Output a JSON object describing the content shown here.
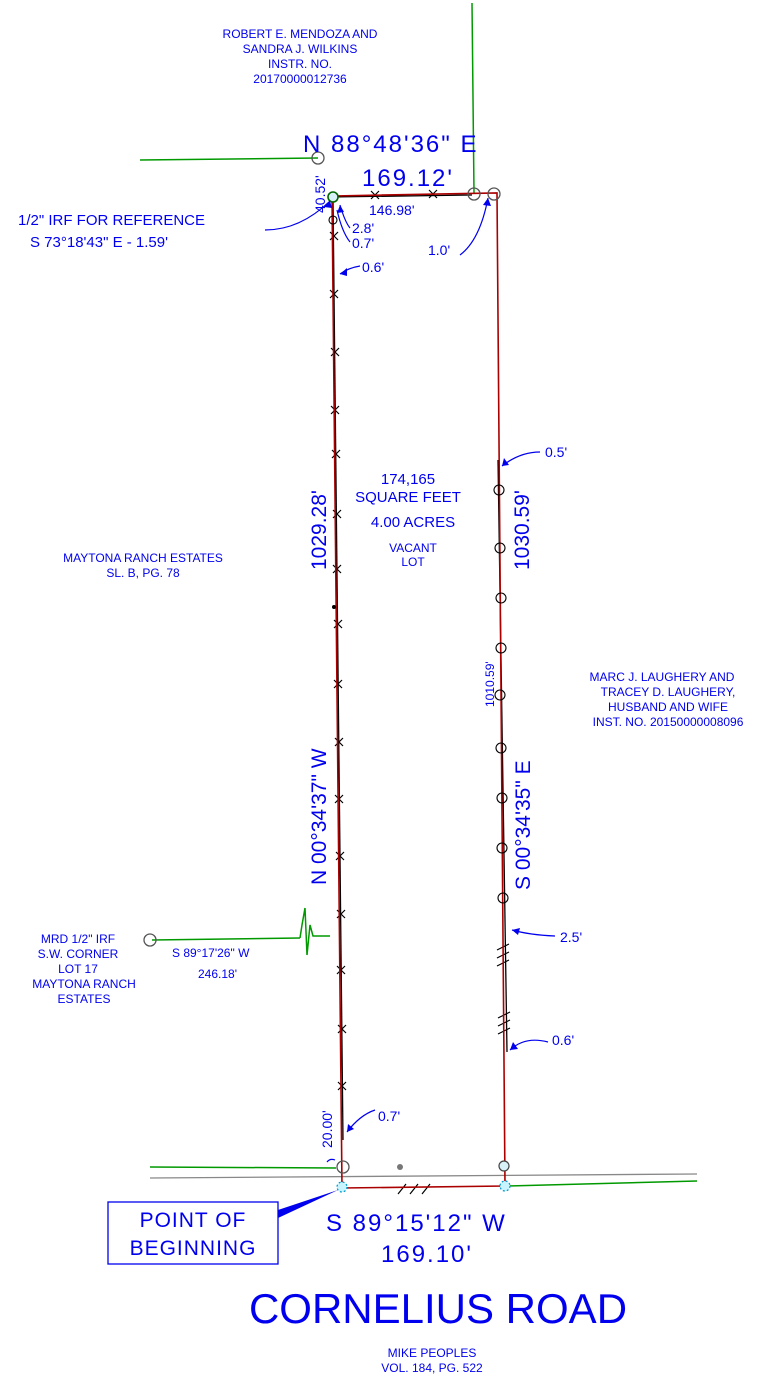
{
  "owners": {
    "north": [
      "ROBERT E. MENDOZA AND",
      "SANDRA J. WILKINS",
      "INSTR. NO.",
      "20170000012736"
    ],
    "west": [
      "MAYTONA RANCH ESTATES",
      "SL. B, PG. 78"
    ],
    "east": [
      "MARC J. LAUGHERY AND",
      "TRACEY D. LAUGHERY,",
      "HUSBAND AND WIFE",
      "INST. NO. 20150000008096"
    ],
    "south": [
      "MIKE PEOPLES",
      "VOL. 184, PG. 522"
    ]
  },
  "bearings": {
    "north_bearing": "N 88°48'36\" E",
    "north_distance": "169.12'",
    "north_fence": "146.98'",
    "west_bearing": "N 00°34'37\" W",
    "west_distance": "1029.28'",
    "east_bearing": "S 00°34'35\" E",
    "east_distance": "1030.59'",
    "east_fence": "1010.59'",
    "south_bearing": "S 89°15'12\" W",
    "south_distance": "169.10'",
    "tie_bearing": "S 89°17'26\" W",
    "tie_distance": "246.18'"
  },
  "offsets": {
    "nw_vertical": "40.52'",
    "a": "2.8'",
    "b": "0.7'",
    "c": "0.6'",
    "ne": "1.0'",
    "east_upper": "0.5'",
    "east_mid": "2.5'",
    "east_lower": "0.6'",
    "sw": "0.7'",
    "sw_vertical": "20.00'"
  },
  "notes": {
    "irf_reference_1": "1/2\" IRF FOR REFERENCE",
    "irf_reference_2": "S 73°18'43\" E - 1.59'",
    "area_sqft": "174,165",
    "area_sqft_label": "SQUARE FEET",
    "area_acres": "4.00 ACRES",
    "vacant_1": "VACANT",
    "vacant_2": "LOT",
    "mrd": [
      "MRD 1/2\" IRF",
      "S.W. CORNER",
      "LOT 17",
      "MAYTONA RANCH",
      "ESTATES"
    ],
    "pob_1": "POINT OF",
    "pob_2": "BEGINNING",
    "road": "CORNELIUS ROAD"
  },
  "colors": {
    "text": "#0000ee",
    "boundary": "#aa0000",
    "adjoiner": "#009900",
    "fence": "#000000",
    "road": "#888888"
  }
}
